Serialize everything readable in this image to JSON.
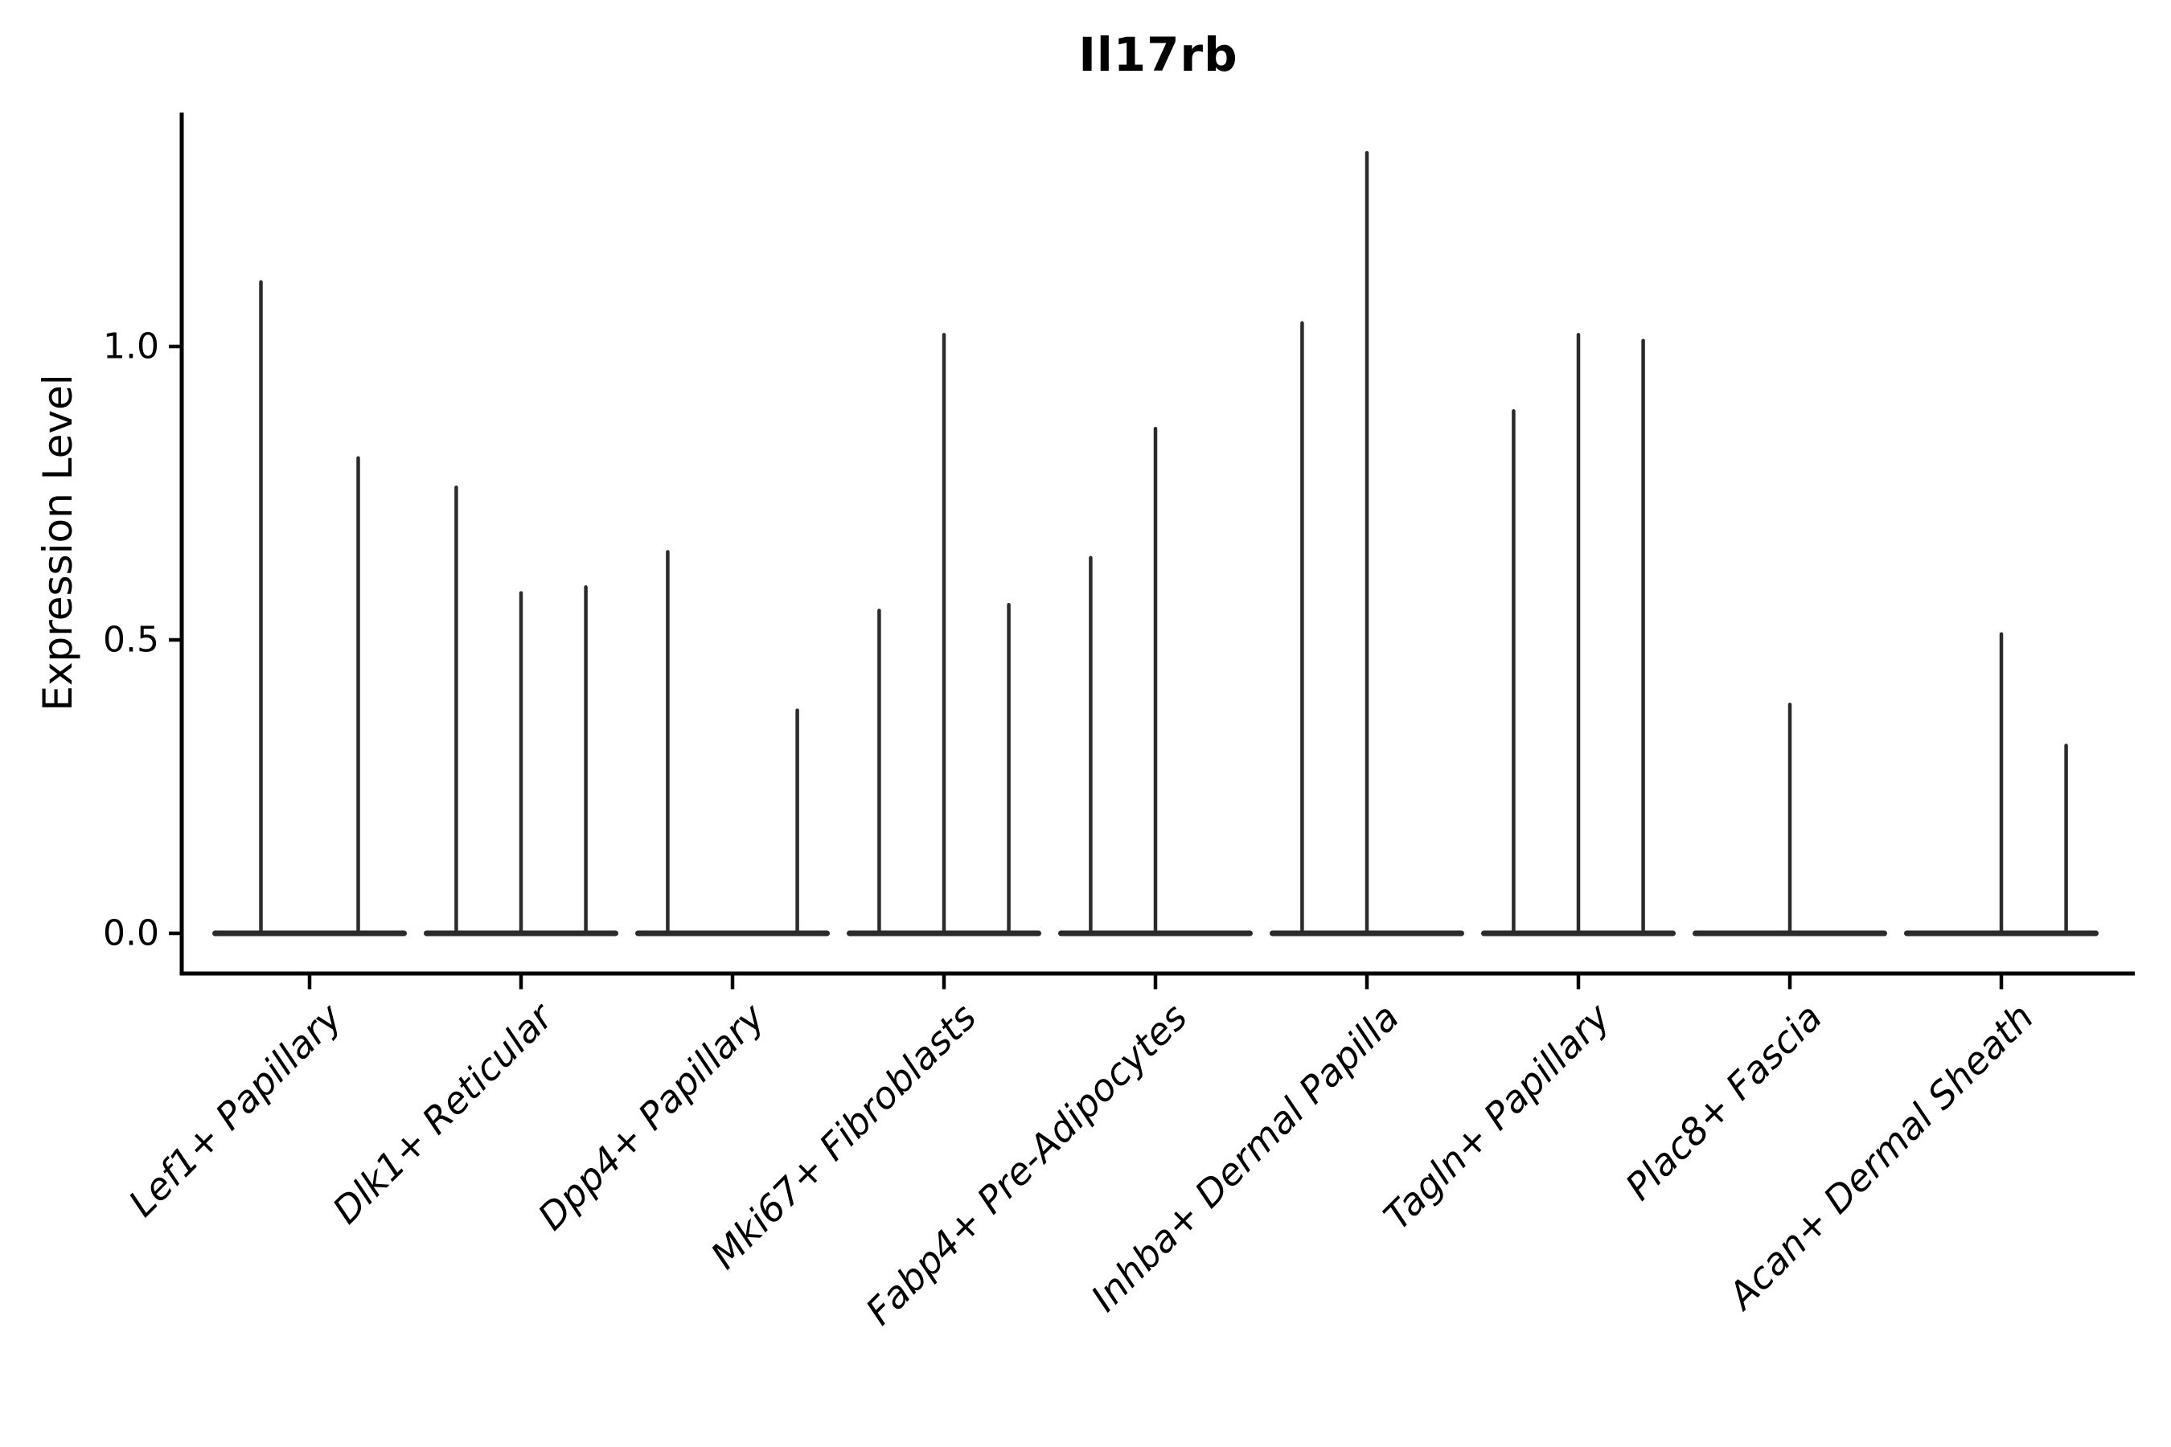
{
  "chart_data": {
    "type": "violin",
    "title": "Il17rb",
    "ylabel": "Expression Level",
    "xlabel": "",
    "ytick_labels": [
      "0.0",
      "0.5",
      "1.0"
    ],
    "ytick_values": [
      0.0,
      0.5,
      1.0
    ],
    "ylim": [
      -0.07,
      1.4
    ],
    "grid": false,
    "legend": "none",
    "categories": [
      "Lef1+ Papillary",
      "Dlk1+ Reticular",
      "Dpp4+ Papillary",
      "Mki67+ Fibroblasts",
      "Fabp4+ Pre-Adipocytes",
      "Inhba+ Dermal Papilla",
      "Tagln+ Papillary",
      "Plac8+ Fascia",
      "Acan+ Dermal Sheath"
    ],
    "groups": [
      {
        "category": "Lef1+ Papillary",
        "violins": [
          {
            "pos": 0.25,
            "max": 1.11
          },
          {
            "pos": 0.75,
            "max": 0.81
          }
        ]
      },
      {
        "category": "Dlk1+ Reticular",
        "violins": [
          {
            "pos": 0.167,
            "max": 0.76
          },
          {
            "pos": 0.5,
            "max": 0.58
          },
          {
            "pos": 0.833,
            "max": 0.59
          }
        ]
      },
      {
        "category": "Dpp4+ Papillary",
        "violins": [
          {
            "pos": 0.167,
            "max": 0.65
          },
          {
            "pos": 0.833,
            "max": 0.38
          }
        ]
      },
      {
        "category": "Mki67+ Fibroblasts",
        "violins": [
          {
            "pos": 0.167,
            "max": 0.55
          },
          {
            "pos": 0.5,
            "max": 1.02
          },
          {
            "pos": 0.833,
            "max": 0.56
          }
        ]
      },
      {
        "category": "Fabp4+ Pre-Adipocytes",
        "violins": [
          {
            "pos": 0.167,
            "max": 0.64
          },
          {
            "pos": 0.5,
            "max": 0.86
          }
        ]
      },
      {
        "category": "Inhba+ Dermal Papilla",
        "violins": [
          {
            "pos": 0.167,
            "max": 1.04
          },
          {
            "pos": 0.5,
            "max": 1.33
          }
        ]
      },
      {
        "category": "Tagln+ Papillary",
        "violins": [
          {
            "pos": 0.167,
            "max": 0.89
          },
          {
            "pos": 0.5,
            "max": 1.02
          },
          {
            "pos": 0.833,
            "max": 1.01
          }
        ]
      },
      {
        "category": "Plac8+ Fascia",
        "violins": [
          {
            "pos": 0.5,
            "max": 0.39
          }
        ]
      },
      {
        "category": "Acan+ Dermal Sheath",
        "violins": [
          {
            "pos": 0.5,
            "max": 0.51
          },
          {
            "pos": 0.833,
            "max": 0.32
          }
        ]
      }
    ],
    "colors": {
      "violin_ink": "#2b2b2b",
      "axis_ink": "#000000",
      "background": "#ffffff"
    }
  }
}
